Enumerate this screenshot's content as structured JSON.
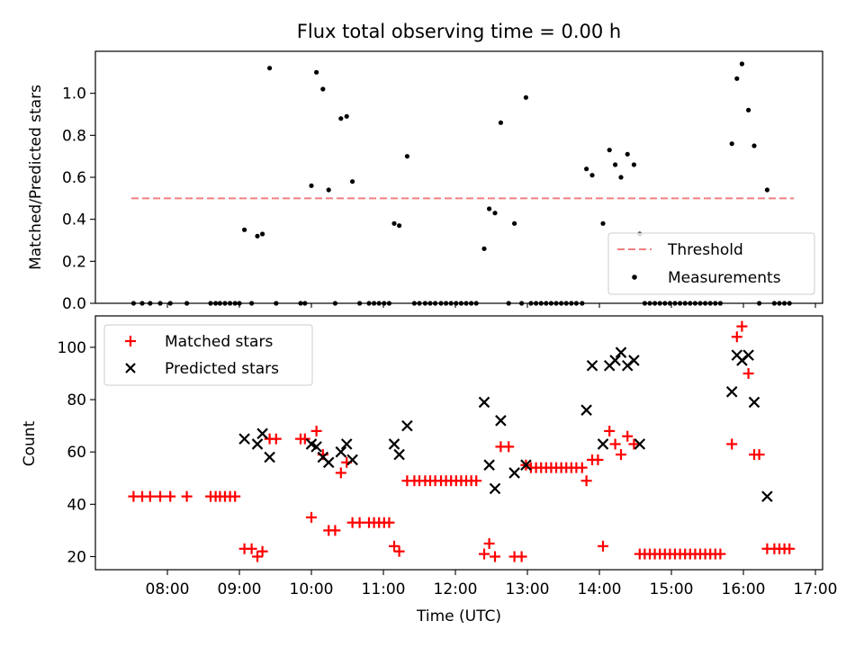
{
  "figure": {
    "title": "Flux total observing time = 0.00 h"
  },
  "chart_data": [
    {
      "type": "scatter",
      "id": "ratio",
      "title": "Flux total observing time = 0.00 h",
      "xlabel": "",
      "ylabel": "Matched/Predicted stars",
      "xlim": [
        7.0,
        17.1
      ],
      "ylim": [
        0,
        1.2
      ],
      "yticks": [
        0.0,
        0.2,
        0.4,
        0.6,
        0.8,
        1.0
      ],
      "grid": false,
      "legend_position": "lower-right",
      "threshold": {
        "name": "Threshold",
        "value": 0.5,
        "x_range": [
          7.5,
          16.7
        ],
        "color": "#f08080"
      },
      "series": [
        {
          "name": "Measurements",
          "color": "#000000",
          "points": [
            [
              7.53,
              0
            ],
            [
              7.65,
              0
            ],
            [
              7.76,
              0
            ],
            [
              7.9,
              0
            ],
            [
              8.04,
              0
            ],
            [
              8.27,
              0
            ],
            [
              8.6,
              0
            ],
            [
              8.67,
              0
            ],
            [
              8.73,
              0
            ],
            [
              8.8,
              0
            ],
            [
              8.87,
              0
            ],
            [
              8.94,
              0
            ],
            [
              9.0,
              0
            ],
            [
              9.07,
              0.35
            ],
            [
              9.17,
              0
            ],
            [
              9.25,
              0.32
            ],
            [
              9.32,
              0.33
            ],
            [
              9.42,
              1.12
            ],
            [
              9.51,
              0
            ],
            [
              9.85,
              0
            ],
            [
              9.91,
              0
            ],
            [
              10.0,
              0.56
            ],
            [
              10.07,
              1.1
            ],
            [
              10.16,
              1.02
            ],
            [
              10.24,
              0.54
            ],
            [
              10.33,
              0
            ],
            [
              10.41,
              0.88
            ],
            [
              10.49,
              0.89
            ],
            [
              10.57,
              0.58
            ],
            [
              10.67,
              0
            ],
            [
              10.8,
              0
            ],
            [
              10.87,
              0
            ],
            [
              10.94,
              0
            ],
            [
              11.01,
              0
            ],
            [
              11.08,
              0
            ],
            [
              11.15,
              0.38
            ],
            [
              11.22,
              0.37
            ],
            [
              11.33,
              0.7
            ],
            [
              11.43,
              0
            ],
            [
              11.5,
              0
            ],
            [
              11.58,
              0
            ],
            [
              11.65,
              0
            ],
            [
              11.72,
              0
            ],
            [
              11.8,
              0
            ],
            [
              11.87,
              0
            ],
            [
              11.94,
              0
            ],
            [
              12.01,
              0
            ],
            [
              12.08,
              0
            ],
            [
              12.15,
              0
            ],
            [
              12.22,
              0
            ],
            [
              12.29,
              0
            ],
            [
              12.4,
              0.26
            ],
            [
              12.47,
              0.45
            ],
            [
              12.55,
              0.43
            ],
            [
              12.63,
              0.86
            ],
            [
              12.74,
              0
            ],
            [
              12.82,
              0.38
            ],
            [
              12.92,
              0
            ],
            [
              12.98,
              0.98
            ],
            [
              13.05,
              0
            ],
            [
              13.12,
              0
            ],
            [
              13.19,
              0
            ],
            [
              13.26,
              0
            ],
            [
              13.33,
              0
            ],
            [
              13.4,
              0
            ],
            [
              13.47,
              0
            ],
            [
              13.54,
              0
            ],
            [
              13.61,
              0
            ],
            [
              13.68,
              0
            ],
            [
              13.76,
              0
            ],
            [
              13.82,
              0.64
            ],
            [
              13.9,
              0.61
            ],
            [
              14.05,
              0.38
            ],
            [
              14.14,
              0.73
            ],
            [
              14.22,
              0.66
            ],
            [
              14.3,
              0.6
            ],
            [
              14.39,
              0.71
            ],
            [
              14.48,
              0.66
            ],
            [
              14.56,
              0.33
            ],
            [
              14.63,
              0
            ],
            [
              14.7,
              0
            ],
            [
              14.77,
              0
            ],
            [
              14.84,
              0
            ],
            [
              14.91,
              0
            ],
            [
              14.98,
              0
            ],
            [
              15.05,
              0
            ],
            [
              15.12,
              0
            ],
            [
              15.19,
              0
            ],
            [
              15.26,
              0
            ],
            [
              15.33,
              0
            ],
            [
              15.4,
              0
            ],
            [
              15.47,
              0
            ],
            [
              15.54,
              0
            ],
            [
              15.61,
              0
            ],
            [
              15.68,
              0
            ],
            [
              15.84,
              0.76
            ],
            [
              15.91,
              1.07
            ],
            [
              15.98,
              1.14
            ],
            [
              16.07,
              0.92
            ],
            [
              16.15,
              0.75
            ],
            [
              16.22,
              0
            ],
            [
              16.33,
              0.54
            ],
            [
              16.43,
              0
            ],
            [
              16.5,
              0
            ],
            [
              16.57,
              0
            ],
            [
              16.64,
              0
            ]
          ]
        }
      ]
    },
    {
      "type": "scatter",
      "id": "counts",
      "title": "",
      "xlabel": "Time (UTC)",
      "ylabel": "Count",
      "xlim": [
        7.0,
        17.1
      ],
      "ylim": [
        15,
        112
      ],
      "yticks": [
        20,
        40,
        60,
        80,
        100
      ],
      "xticks": [
        8,
        9,
        10,
        11,
        12,
        13,
        14,
        15,
        16,
        17
      ],
      "xticklabels": [
        "08:00",
        "09:00",
        "10:00",
        "11:00",
        "12:00",
        "13:00",
        "14:00",
        "15:00",
        "16:00",
        "17:00"
      ],
      "grid": false,
      "legend_position": "upper-left",
      "series": [
        {
          "name": "Matched stars",
          "marker": "plus",
          "color": "#ff0000",
          "points": [
            [
              7.53,
              43
            ],
            [
              7.65,
              43
            ],
            [
              7.76,
              43
            ],
            [
              7.9,
              43
            ],
            [
              8.04,
              43
            ],
            [
              8.27,
              43
            ],
            [
              8.6,
              43
            ],
            [
              8.67,
              43
            ],
            [
              8.73,
              43
            ],
            [
              8.8,
              43
            ],
            [
              8.87,
              43
            ],
            [
              8.94,
              43
            ],
            [
              9.07,
              23
            ],
            [
              9.17,
              23
            ],
            [
              9.25,
              20
            ],
            [
              9.32,
              22
            ],
            [
              9.42,
              65
            ],
            [
              9.51,
              65
            ],
            [
              9.85,
              65
            ],
            [
              9.91,
              65
            ],
            [
              10.0,
              35
            ],
            [
              10.07,
              68
            ],
            [
              10.16,
              59
            ],
            [
              10.24,
              30
            ],
            [
              10.33,
              30
            ],
            [
              10.41,
              52
            ],
            [
              10.49,
              56
            ],
            [
              10.57,
              33
            ],
            [
              10.67,
              33
            ],
            [
              10.8,
              33
            ],
            [
              10.87,
              33
            ],
            [
              10.94,
              33
            ],
            [
              11.01,
              33
            ],
            [
              11.08,
              33
            ],
            [
              11.15,
              24
            ],
            [
              11.22,
              22
            ],
            [
              11.33,
              49
            ],
            [
              11.43,
              49
            ],
            [
              11.5,
              49
            ],
            [
              11.58,
              49
            ],
            [
              11.65,
              49
            ],
            [
              11.72,
              49
            ],
            [
              11.8,
              49
            ],
            [
              11.87,
              49
            ],
            [
              11.94,
              49
            ],
            [
              12.01,
              49
            ],
            [
              12.08,
              49
            ],
            [
              12.15,
              49
            ],
            [
              12.22,
              49
            ],
            [
              12.29,
              49
            ],
            [
              12.4,
              21
            ],
            [
              12.47,
              25
            ],
            [
              12.55,
              20
            ],
            [
              12.63,
              62
            ],
            [
              12.74,
              62
            ],
            [
              12.82,
              20
            ],
            [
              12.92,
              20
            ],
            [
              12.98,
              55
            ],
            [
              13.05,
              54
            ],
            [
              13.12,
              54
            ],
            [
              13.19,
              54
            ],
            [
              13.26,
              54
            ],
            [
              13.33,
              54
            ],
            [
              13.4,
              54
            ],
            [
              13.47,
              54
            ],
            [
              13.54,
              54
            ],
            [
              13.61,
              54
            ],
            [
              13.68,
              54
            ],
            [
              13.76,
              54
            ],
            [
              13.82,
              49
            ],
            [
              13.9,
              57
            ],
            [
              13.98,
              57
            ],
            [
              14.05,
              24
            ],
            [
              14.14,
              68
            ],
            [
              14.22,
              63
            ],
            [
              14.3,
              59
            ],
            [
              14.39,
              66
            ],
            [
              14.48,
              63
            ],
            [
              14.56,
              21
            ],
            [
              14.63,
              21
            ],
            [
              14.7,
              21
            ],
            [
              14.77,
              21
            ],
            [
              14.84,
              21
            ],
            [
              14.91,
              21
            ],
            [
              14.98,
              21
            ],
            [
              15.05,
              21
            ],
            [
              15.12,
              21
            ],
            [
              15.19,
              21
            ],
            [
              15.26,
              21
            ],
            [
              15.33,
              21
            ],
            [
              15.4,
              21
            ],
            [
              15.47,
              21
            ],
            [
              15.54,
              21
            ],
            [
              15.61,
              21
            ],
            [
              15.68,
              21
            ],
            [
              15.84,
              63
            ],
            [
              15.91,
              104
            ],
            [
              15.98,
              108
            ],
            [
              16.07,
              90
            ],
            [
              16.15,
              59
            ],
            [
              16.22,
              59
            ],
            [
              16.33,
              23
            ],
            [
              16.43,
              23
            ],
            [
              16.5,
              23
            ],
            [
              16.57,
              23
            ],
            [
              16.64,
              23
            ]
          ]
        },
        {
          "name": "Predicted stars",
          "marker": "x",
          "color": "#000000",
          "points": [
            [
              9.07,
              65
            ],
            [
              9.25,
              63
            ],
            [
              9.32,
              67
            ],
            [
              9.42,
              58
            ],
            [
              10.0,
              63
            ],
            [
              10.07,
              62
            ],
            [
              10.16,
              58
            ],
            [
              10.24,
              56
            ],
            [
              10.41,
              60
            ],
            [
              10.49,
              63
            ],
            [
              10.57,
              57
            ],
            [
              11.15,
              63
            ],
            [
              11.22,
              59
            ],
            [
              11.33,
              70
            ],
            [
              12.4,
              79
            ],
            [
              12.47,
              55
            ],
            [
              12.55,
              46
            ],
            [
              12.63,
              72
            ],
            [
              12.82,
              52
            ],
            [
              12.98,
              55
            ],
            [
              13.82,
              76
            ],
            [
              13.9,
              93
            ],
            [
              14.05,
              63
            ],
            [
              14.14,
              93
            ],
            [
              14.22,
              95
            ],
            [
              14.3,
              98
            ],
            [
              14.39,
              93
            ],
            [
              14.48,
              95
            ],
            [
              14.56,
              63
            ],
            [
              15.84,
              83
            ],
            [
              15.91,
              97
            ],
            [
              15.98,
              95
            ],
            [
              16.07,
              97
            ],
            [
              16.15,
              79
            ],
            [
              16.33,
              43
            ]
          ]
        }
      ]
    }
  ]
}
